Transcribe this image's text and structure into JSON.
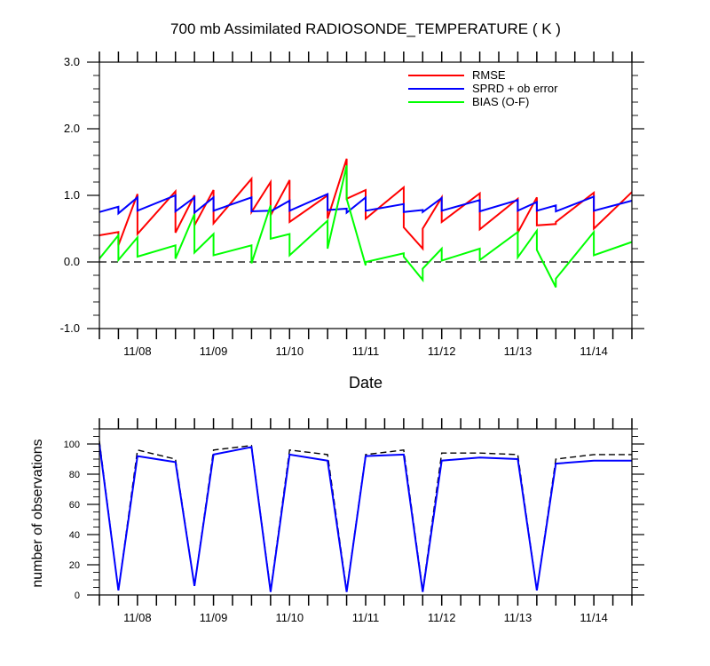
{
  "chart_data": [
    {
      "type": "line",
      "title": "700 mb Assimilated RADIOSONDE_TEMPERATURE ( K )",
      "xlabel": "Date",
      "ylabel": "",
      "xlim": [
        0,
        7
      ],
      "ylim": [
        -1.0,
        3.0
      ],
      "x_tick_labels": [
        "11/08",
        "11/09",
        "11/10",
        "11/11",
        "11/12",
        "11/13",
        "11/14"
      ],
      "y_tick_labels": [
        "-1.0",
        "0.0",
        "1.0",
        "2.0",
        "3.0"
      ],
      "legend_position": "top-right",
      "reference_line": {
        "y": 0.0,
        "style": "dashed",
        "color": "#000000"
      },
      "series": [
        {
          "name": "RMSE",
          "color": "#ff0000",
          "x": [
            0.0,
            0.25,
            0.25,
            0.5,
            0.5,
            1.0,
            1.0,
            1.25,
            1.25,
            1.5,
            1.5,
            2.0,
            2.0,
            2.25,
            2.25,
            2.5,
            2.5,
            3.0,
            3.0,
            3.25,
            3.25,
            3.5,
            3.5,
            4.0,
            4.0,
            4.25,
            4.25,
            4.5,
            4.5,
            5.0,
            5.0,
            5.5,
            5.5,
            5.75,
            5.75,
            6.0,
            6.0,
            6.5,
            6.5,
            7.0
          ],
          "y": [
            0.4,
            0.45,
            0.25,
            1.02,
            0.42,
            1.06,
            0.44,
            1.0,
            0.55,
            1.08,
            0.58,
            1.25,
            0.75,
            1.2,
            0.7,
            1.23,
            0.6,
            1.0,
            0.65,
            1.55,
            0.95,
            1.08,
            0.65,
            1.12,
            0.52,
            0.2,
            0.5,
            0.97,
            0.6,
            1.03,
            0.49,
            0.95,
            0.44,
            0.97,
            0.55,
            0.57,
            0.6,
            1.04,
            0.5,
            1.05
          ]
        },
        {
          "name": "SPRD + ob error",
          "color": "#0000ff",
          "x": [
            0.0,
            0.25,
            0.25,
            0.5,
            0.5,
            1.0,
            1.0,
            1.25,
            1.25,
            1.5,
            1.5,
            2.0,
            2.0,
            2.25,
            2.25,
            2.5,
            2.5,
            3.0,
            3.0,
            3.25,
            3.25,
            3.5,
            3.5,
            4.0,
            4.0,
            4.25,
            4.25,
            4.5,
            4.5,
            5.0,
            5.0,
            5.5,
            5.5,
            5.75,
            5.75,
            6.0,
            6.0,
            6.5,
            6.5,
            7.0
          ],
          "y": [
            0.75,
            0.83,
            0.73,
            0.97,
            0.77,
            1.0,
            0.76,
            0.97,
            0.74,
            0.97,
            0.77,
            0.97,
            0.76,
            0.77,
            0.76,
            0.92,
            0.77,
            1.02,
            0.78,
            0.8,
            0.74,
            0.97,
            0.77,
            0.87,
            0.75,
            0.78,
            0.75,
            0.96,
            0.77,
            0.93,
            0.76,
            0.93,
            0.77,
            0.9,
            0.77,
            0.85,
            0.76,
            0.98,
            0.77,
            0.92
          ]
        },
        {
          "name": "BIAS (O-F)",
          "color": "#00ff00",
          "x": [
            0.0,
            0.25,
            0.25,
            0.5,
            0.5,
            1.0,
            1.0,
            1.25,
            1.25,
            1.5,
            1.5,
            2.0,
            2.0,
            2.25,
            2.25,
            2.5,
            2.5,
            3.0,
            3.0,
            3.25,
            3.25,
            3.5,
            3.5,
            4.0,
            4.0,
            4.25,
            4.25,
            4.5,
            4.5,
            5.0,
            5.0,
            5.5,
            5.5,
            5.75,
            5.75,
            6.0,
            6.0,
            6.5,
            6.5,
            7.0
          ],
          "y": [
            0.05,
            0.4,
            0.03,
            0.37,
            0.08,
            0.25,
            0.05,
            0.72,
            0.14,
            0.42,
            0.1,
            0.25,
            -0.02,
            0.85,
            0.35,
            0.42,
            0.1,
            0.62,
            0.2,
            1.45,
            0.95,
            -0.05,
            0.0,
            0.13,
            0.08,
            -0.27,
            -0.1,
            0.2,
            0.02,
            0.2,
            0.03,
            0.45,
            0.07,
            0.47,
            0.18,
            -0.38,
            -0.25,
            0.45,
            0.1,
            0.3
          ]
        }
      ]
    },
    {
      "type": "line",
      "title": "",
      "xlabel": "",
      "ylabel": "number of observations",
      "xlim": [
        0,
        7
      ],
      "ylim": [
        0,
        110
      ],
      "x_tick_labels": [
        "11/08",
        "11/09",
        "11/10",
        "11/11",
        "11/12",
        "11/13",
        "11/14"
      ],
      "y_tick_labels": [
        "0",
        "20",
        "40",
        "60",
        "80",
        "100"
      ],
      "series": [
        {
          "color": "#000000",
          "style": "dashed",
          "x": [
            0.0,
            0.25,
            0.5,
            1.0,
            1.25,
            1.5,
            2.0,
            2.25,
            2.5,
            3.0,
            3.25,
            3.5,
            4.0,
            4.25,
            4.5,
            5.0,
            5.5,
            5.75,
            6.0,
            6.5,
            7.0
          ],
          "y": [
            102,
            3,
            96,
            90,
            6,
            96,
            99,
            3,
            96,
            93,
            3,
            93,
            96,
            3,
            94,
            94,
            93,
            3,
            90,
            93,
            93
          ]
        },
        {
          "color": "#0000ff",
          "x": [
            0.0,
            0.25,
            0.5,
            1.0,
            1.25,
            1.5,
            2.0,
            2.25,
            2.5,
            3.0,
            3.25,
            3.5,
            4.0,
            4.25,
            4.5,
            5.0,
            5.5,
            5.75,
            6.0,
            6.5,
            7.0
          ],
          "y": [
            100,
            3,
            92,
            88,
            6,
            93,
            98,
            2,
            93,
            89,
            2,
            92,
            93,
            2,
            89,
            91,
            90,
            3,
            87,
            89,
            89
          ]
        }
      ]
    }
  ]
}
